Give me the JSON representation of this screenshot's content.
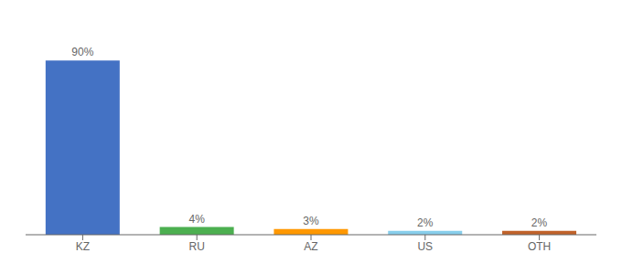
{
  "chart_data": {
    "type": "bar",
    "categories": [
      "KZ",
      "RU",
      "AZ",
      "US",
      "OTH"
    ],
    "values": [
      90,
      4,
      3,
      2,
      2
    ],
    "value_labels": [
      "90%",
      "4%",
      "3%",
      "2%",
      "2%"
    ],
    "data_labels": true,
    "colors": [
      "#4472c4",
      "#4caf50",
      "#ff9800",
      "#87ceeb",
      "#c0622a"
    ],
    "ylim": [
      0,
      108
    ],
    "grid": false,
    "tick_labels": "x"
  }
}
